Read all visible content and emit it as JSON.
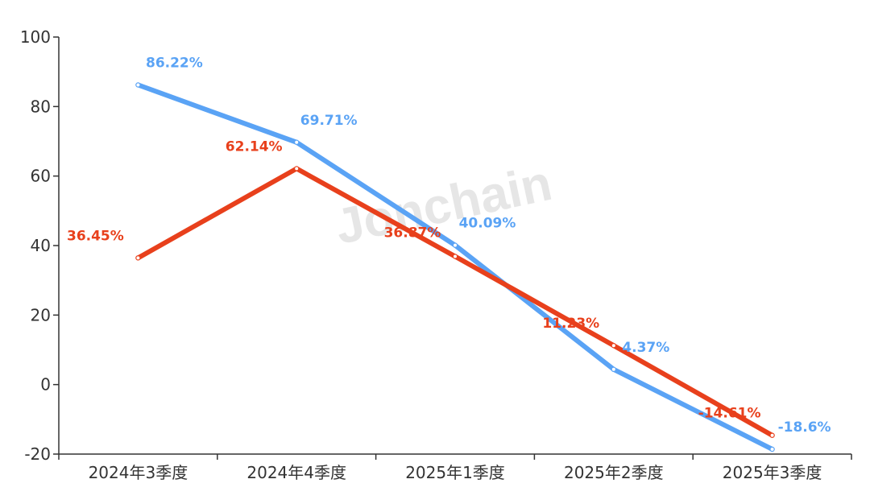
{
  "chart_data": {
    "type": "line",
    "categories": [
      "2024年3季度",
      "2024年4季度",
      "2025年1季度",
      "2025年2季度",
      "2025年3季度"
    ],
    "ylim": [
      -20,
      100
    ],
    "yticks": [
      "-20",
      "0",
      "20",
      "40",
      "60",
      "80",
      "100"
    ],
    "grid": false,
    "series": [
      {
        "color": "#5aa3f5",
        "values": [
          86.22,
          69.71,
          40.09,
          4.37,
          -18.6
        ],
        "labels": [
          "86.22%",
          "69.71%",
          "40.09%",
          "4.37%",
          "-18.6%"
        ]
      },
      {
        "color": "#e8401c",
        "values": [
          36.45,
          62.14,
          36.87,
          11.23,
          -14.61
        ],
        "labels": [
          "36.45%",
          "62.14%",
          "36.87%",
          "11.23%",
          "-14.61%"
        ]
      }
    ]
  },
  "watermark": "Jonchain"
}
